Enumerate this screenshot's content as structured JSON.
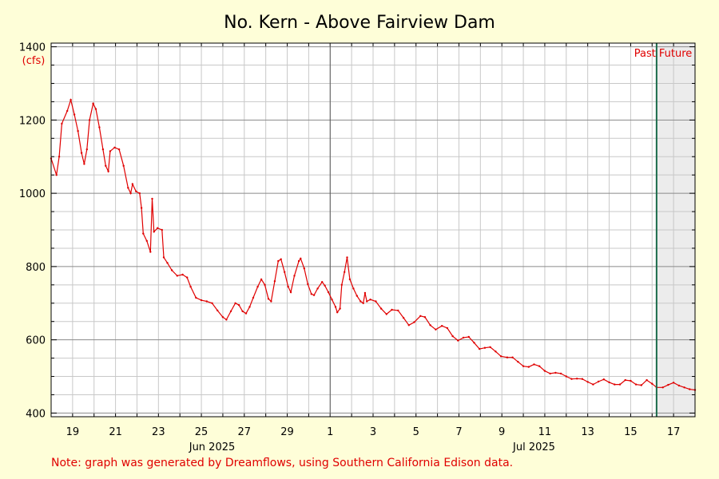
{
  "chart_data": {
    "type": "line",
    "title": "No. Kern - Above Fairview Dam",
    "ylabel": "(cfs)",
    "ylim": [
      390,
      1410
    ],
    "yticks": [
      400,
      600,
      800,
      1000,
      1200,
      1400
    ],
    "xlim": [
      "2025-06-18T00:00",
      "2025-07-18T00:00"
    ],
    "grid": true,
    "x_tick_labels": [
      "19",
      "21",
      "23",
      "25",
      "27",
      "29",
      "1",
      "3",
      "5",
      "7",
      "9",
      "11",
      "13",
      "15",
      "17"
    ],
    "month_labels": [
      {
        "label": "Jun 2025",
        "date": "2025-06-25T12:00"
      },
      {
        "label": "Jul 2025",
        "date": "2025-07-10T12:00"
      }
    ],
    "month_divider": "2025-07-01T00:00",
    "now": "2025-07-16T05:00",
    "past_label": "Past",
    "future_label": "Future",
    "colors": {
      "line": "#e00000",
      "now_line": "#1a6b4a",
      "future_shade": "#ececec"
    },
    "series": [
      {
        "points": [
          [
            "2025-06-18T00:00",
            1095
          ],
          [
            "2025-06-18T06:00",
            1050
          ],
          [
            "2025-06-18T09:00",
            1100
          ],
          [
            "2025-06-18T12:00",
            1190
          ],
          [
            "2025-06-18T18:00",
            1225
          ],
          [
            "2025-06-18T22:00",
            1255
          ],
          [
            "2025-06-19T02:00",
            1215
          ],
          [
            "2025-06-19T06:00",
            1170
          ],
          [
            "2025-06-19T10:00",
            1110
          ],
          [
            "2025-06-19T13:00",
            1080
          ],
          [
            "2025-06-19T16:00",
            1120
          ],
          [
            "2025-06-19T19:00",
            1200
          ],
          [
            "2025-06-19T23:00",
            1245
          ],
          [
            "2025-06-20T02:00",
            1230
          ],
          [
            "2025-06-20T06:00",
            1180
          ],
          [
            "2025-06-20T10:00",
            1120
          ],
          [
            "2025-06-20T13:00",
            1075
          ],
          [
            "2025-06-20T16:00",
            1060
          ],
          [
            "2025-06-20T18:00",
            1115
          ],
          [
            "2025-06-20T23:00",
            1125
          ],
          [
            "2025-06-21T04:00",
            1120
          ],
          [
            "2025-06-21T09:00",
            1075
          ],
          [
            "2025-06-21T14:00",
            1015
          ],
          [
            "2025-06-21T17:00",
            1000
          ],
          [
            "2025-06-21T19:00",
            1025
          ],
          [
            "2025-06-21T23:00",
            1005
          ],
          [
            "2025-06-22T03:00",
            1000
          ],
          [
            "2025-06-22T05:00",
            960
          ],
          [
            "2025-06-22T07:00",
            890
          ],
          [
            "2025-06-22T11:00",
            870
          ],
          [
            "2025-06-22T15:00",
            840
          ],
          [
            "2025-06-22T17:00",
            985
          ],
          [
            "2025-06-22T19:00",
            895
          ],
          [
            "2025-06-22T23:00",
            905
          ],
          [
            "2025-06-23T04:00",
            900
          ],
          [
            "2025-06-23T06:00",
            825
          ],
          [
            "2025-06-23T10:00",
            810
          ],
          [
            "2025-06-23T15:00",
            790
          ],
          [
            "2025-06-23T21:00",
            775
          ],
          [
            "2025-06-24T03:00",
            778
          ],
          [
            "2025-06-24T08:00",
            770
          ],
          [
            "2025-06-24T12:00",
            745
          ],
          [
            "2025-06-24T18:00",
            715
          ],
          [
            "2025-06-25T00:00",
            708
          ],
          [
            "2025-06-25T06:00",
            705
          ],
          [
            "2025-06-25T12:00",
            700
          ],
          [
            "2025-06-25T18:00",
            680
          ],
          [
            "2025-06-26T00:00",
            662
          ],
          [
            "2025-06-26T04:00",
            655
          ],
          [
            "2025-06-26T09:00",
            678
          ],
          [
            "2025-06-26T14:00",
            700
          ],
          [
            "2025-06-26T18:00",
            695
          ],
          [
            "2025-06-26T22:00",
            678
          ],
          [
            "2025-06-27T02:00",
            672
          ],
          [
            "2025-06-27T06:00",
            690
          ],
          [
            "2025-06-27T10:00",
            715
          ],
          [
            "2025-06-27T15:00",
            745
          ],
          [
            "2025-06-27T19:00",
            765
          ],
          [
            "2025-06-27T23:00",
            750
          ],
          [
            "2025-06-28T03:00",
            712
          ],
          [
            "2025-06-28T06:00",
            705
          ],
          [
            "2025-06-28T10:00",
            760
          ],
          [
            "2025-06-28T14:00",
            815
          ],
          [
            "2025-06-28T17:00",
            820
          ],
          [
            "2025-06-28T21:00",
            785
          ],
          [
            "2025-06-29T01:00",
            745
          ],
          [
            "2025-06-29T04:00",
            730
          ],
          [
            "2025-06-29T08:00",
            775
          ],
          [
            "2025-06-29T13:00",
            815
          ],
          [
            "2025-06-29T15:00",
            822
          ],
          [
            "2025-06-29T19:00",
            795
          ],
          [
            "2025-06-29T23:00",
            752
          ],
          [
            "2025-06-30T03:00",
            725
          ],
          [
            "2025-06-30T06:00",
            722
          ],
          [
            "2025-06-30T10:00",
            740
          ],
          [
            "2025-06-30T15:00",
            758
          ],
          [
            "2025-06-30T18:00",
            748
          ],
          [
            "2025-06-30T22:00",
            730
          ],
          [
            "2025-07-01T02:00",
            710
          ],
          [
            "2025-07-01T06:00",
            690
          ],
          [
            "2025-07-01T08:00",
            675
          ],
          [
            "2025-07-01T11:00",
            685
          ],
          [
            "2025-07-01T13:00",
            750
          ],
          [
            "2025-07-01T16:00",
            785
          ],
          [
            "2025-07-01T19:00",
            825
          ],
          [
            "2025-07-01T22:00",
            765
          ],
          [
            "2025-07-02T02:00",
            740
          ],
          [
            "2025-07-02T06:00",
            720
          ],
          [
            "2025-07-02T10:00",
            705
          ],
          [
            "2025-07-02T13:00",
            700
          ],
          [
            "2025-07-02T15:00",
            728
          ],
          [
            "2025-07-02T17:00",
            705
          ],
          [
            "2025-07-02T21:00",
            710
          ],
          [
            "2025-07-03T03:00",
            705
          ],
          [
            "2025-07-03T09:00",
            685
          ],
          [
            "2025-07-03T15:00",
            670
          ],
          [
            "2025-07-03T21:00",
            682
          ],
          [
            "2025-07-04T04:00",
            680
          ],
          [
            "2025-07-04T10:00",
            660
          ],
          [
            "2025-07-04T16:00",
            640
          ],
          [
            "2025-07-04T22:00",
            648
          ],
          [
            "2025-07-05T05:00",
            665
          ],
          [
            "2025-07-05T10:00",
            662
          ],
          [
            "2025-07-05T16:00",
            640
          ],
          [
            "2025-07-05T22:00",
            628
          ],
          [
            "2025-07-06T05:00",
            638
          ],
          [
            "2025-07-06T11:00",
            632
          ],
          [
            "2025-07-06T17:00",
            610
          ],
          [
            "2025-07-06T23:00",
            598
          ],
          [
            "2025-07-07T05:00",
            606
          ],
          [
            "2025-07-07T11:00",
            608
          ],
          [
            "2025-07-07T17:00",
            592
          ],
          [
            "2025-07-07T23:00",
            575
          ],
          [
            "2025-07-08T05:00",
            578
          ],
          [
            "2025-07-08T11:00",
            580
          ],
          [
            "2025-07-08T17:00",
            568
          ],
          [
            "2025-07-08T23:00",
            555
          ],
          [
            "2025-07-09T06:00",
            552
          ],
          [
            "2025-07-09T12:00",
            552
          ],
          [
            "2025-07-09T18:00",
            540
          ],
          [
            "2025-07-10T00:00",
            528
          ],
          [
            "2025-07-10T06:00",
            526
          ],
          [
            "2025-07-10T12:00",
            533
          ],
          [
            "2025-07-10T18:00",
            528
          ],
          [
            "2025-07-11T00:00",
            515
          ],
          [
            "2025-07-11T06:00",
            508
          ],
          [
            "2025-07-11T12:00",
            510
          ],
          [
            "2025-07-11T18:00",
            508
          ],
          [
            "2025-07-12T00:00",
            500
          ],
          [
            "2025-07-12T06:00",
            493
          ],
          [
            "2025-07-12T12:00",
            494
          ],
          [
            "2025-07-12T18:00",
            493
          ],
          [
            "2025-07-13T00:00",
            485
          ],
          [
            "2025-07-13T06:00",
            478
          ],
          [
            "2025-07-13T12:00",
            486
          ],
          [
            "2025-07-13T18:00",
            492
          ],
          [
            "2025-07-14T00:00",
            484
          ],
          [
            "2025-07-14T06:00",
            478
          ],
          [
            "2025-07-14T12:00",
            478
          ],
          [
            "2025-07-14T18:00",
            490
          ],
          [
            "2025-07-15T00:00",
            488
          ],
          [
            "2025-07-15T06:00",
            478
          ],
          [
            "2025-07-15T12:00",
            476
          ],
          [
            "2025-07-15T18:00",
            490
          ],
          [
            "2025-07-16T00:00",
            480
          ],
          [
            "2025-07-16T05:00",
            470
          ],
          [
            "2025-07-16T12:00",
            470
          ],
          [
            "2025-07-16T18:00",
            477
          ],
          [
            "2025-07-17T00:00",
            483
          ],
          [
            "2025-07-17T06:00",
            475
          ],
          [
            "2025-07-17T12:00",
            470
          ],
          [
            "2025-07-17T18:00",
            465
          ],
          [
            "2025-07-18T00:00",
            463
          ]
        ]
      }
    ]
  },
  "note": "Note: graph was generated by Dreamflows, using Southern California Edison data."
}
